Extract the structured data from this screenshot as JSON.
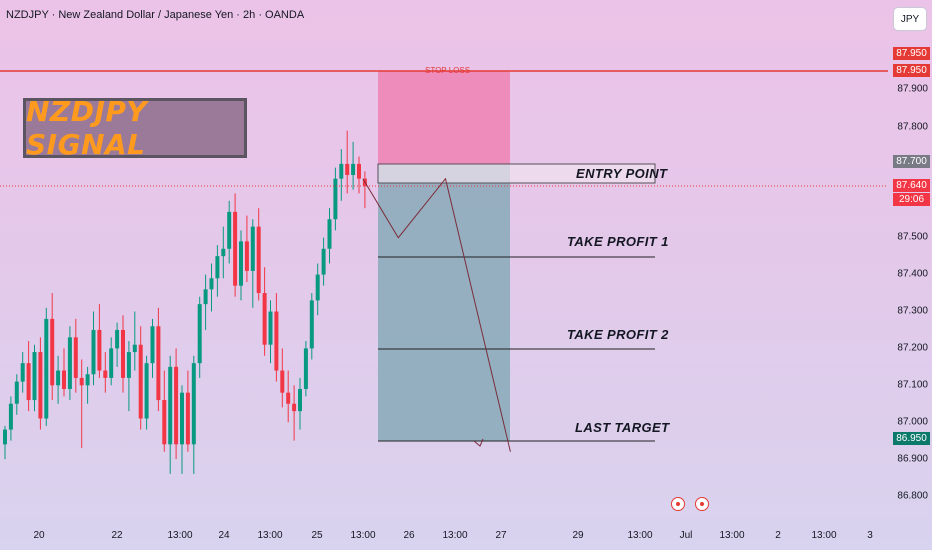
{
  "header": {
    "title": "NZDJPY · New Zealand Dollar / Japanese Yen · 2h · OANDA"
  },
  "currency_button": "JPY",
  "signal_title": "NZDJPY SIGNAL",
  "levels": {
    "stop_loss": "STOP LOSS",
    "entry": "ENTRY POINT",
    "tp1": "TAKE PROFIT 1",
    "tp2": "TAKE PROFIT 2",
    "last": "LAST TARGET"
  },
  "price_axis": {
    "ticks": [
      "87.900",
      "87.800",
      "87.500",
      "87.400",
      "87.300",
      "87.200",
      "87.100",
      "87.000",
      "86.900",
      "86.800"
    ],
    "badges": {
      "stop_loss_1": "87.950",
      "stop_loss_2": "87.950",
      "entry": "87.700",
      "current": "87.640",
      "countdown": "29:06",
      "target": "86.950"
    }
  },
  "time_axis": {
    "labels": [
      "20",
      "22",
      "13:00",
      "24",
      "13:00",
      "25",
      "13:00",
      "26",
      "13:00",
      "27",
      "29",
      "13:00",
      "Jul",
      "13:00",
      "2",
      "13:00",
      "3"
    ]
  },
  "colors": {
    "bull": "#089981",
    "bear": "#f23645",
    "stop_line": "#e53935",
    "stop_zone": "#ee83b4",
    "target_zone": "#7fa7b4"
  },
  "candles": [
    [
      86.94,
      86.99,
      86.9,
      86.98
    ],
    [
      86.98,
      87.07,
      86.95,
      87.05
    ],
    [
      87.05,
      87.13,
      87.02,
      87.11
    ],
    [
      87.11,
      87.19,
      87.08,
      87.16
    ],
    [
      87.16,
      87.22,
      87.03,
      87.06
    ],
    [
      87.06,
      87.21,
      87.03,
      87.19
    ],
    [
      87.19,
      87.23,
      86.98,
      87.01
    ],
    [
      87.01,
      87.31,
      86.99,
      87.28
    ],
    [
      87.28,
      87.35,
      87.06,
      87.1
    ],
    [
      87.1,
      87.18,
      87.05,
      87.14
    ],
    [
      87.14,
      87.2,
      87.07,
      87.09
    ],
    [
      87.09,
      87.26,
      87.06,
      87.23
    ],
    [
      87.23,
      87.28,
      87.08,
      87.12
    ],
    [
      87.12,
      87.17,
      86.93,
      87.1
    ],
    [
      87.1,
      87.15,
      87.05,
      87.13
    ],
    [
      87.13,
      87.3,
      87.1,
      87.25
    ],
    [
      87.25,
      87.32,
      87.12,
      87.14
    ],
    [
      87.14,
      87.19,
      87.08,
      87.12
    ],
    [
      87.12,
      87.23,
      87.1,
      87.2
    ],
    [
      87.2,
      87.27,
      87.15,
      87.25
    ],
    [
      87.25,
      87.29,
      87.08,
      87.12
    ],
    [
      87.12,
      87.22,
      87.03,
      87.19
    ],
    [
      87.19,
      87.3,
      87.14,
      87.21
    ],
    [
      87.21,
      87.26,
      86.98,
      87.01
    ],
    [
      87.01,
      87.18,
      86.98,
      87.16
    ],
    [
      87.16,
      87.28,
      87.12,
      87.26
    ],
    [
      87.26,
      87.31,
      87.03,
      87.06
    ],
    [
      87.06,
      87.14,
      86.92,
      86.94
    ],
    [
      86.94,
      87.18,
      86.86,
      87.15
    ],
    [
      87.15,
      87.2,
      86.9,
      86.94
    ],
    [
      86.94,
      87.1,
      86.86,
      87.08
    ],
    [
      87.08,
      87.14,
      86.92,
      86.94
    ],
    [
      86.94,
      87.18,
      86.86,
      87.16
    ],
    [
      87.16,
      87.34,
      87.12,
      87.32
    ],
    [
      87.32,
      87.4,
      87.25,
      87.36
    ],
    [
      87.36,
      87.43,
      87.3,
      87.39
    ],
    [
      87.39,
      87.48,
      87.34,
      87.45
    ],
    [
      87.45,
      87.53,
      87.39,
      87.47
    ],
    [
      87.47,
      87.6,
      87.43,
      87.57
    ],
    [
      87.57,
      87.62,
      87.34,
      87.37
    ],
    [
      87.37,
      87.52,
      87.33,
      87.49
    ],
    [
      87.49,
      87.56,
      87.38,
      87.41
    ],
    [
      87.41,
      87.55,
      87.31,
      87.53
    ],
    [
      87.53,
      87.58,
      87.33,
      87.35
    ],
    [
      87.35,
      87.42,
      87.18,
      87.21
    ],
    [
      87.21,
      87.33,
      87.16,
      87.3
    ],
    [
      87.3,
      87.35,
      87.11,
      87.14
    ],
    [
      87.14,
      87.2,
      87.04,
      87.08
    ],
    [
      87.08,
      87.14,
      87.0,
      87.05
    ],
    [
      87.05,
      87.1,
      86.95,
      87.03
    ],
    [
      87.03,
      87.12,
      86.98,
      87.09
    ],
    [
      87.09,
      87.22,
      87.07,
      87.2
    ],
    [
      87.2,
      87.35,
      87.17,
      87.33
    ],
    [
      87.33,
      87.43,
      87.29,
      87.4
    ],
    [
      87.4,
      87.5,
      87.37,
      87.47
    ],
    [
      87.47,
      87.58,
      87.43,
      87.55
    ],
    [
      87.55,
      87.69,
      87.52,
      87.66
    ],
    [
      87.66,
      87.74,
      87.6,
      87.7
    ],
    [
      87.7,
      87.79,
      87.62,
      87.67
    ],
    [
      87.67,
      87.76,
      87.63,
      87.7
    ],
    [
      87.7,
      87.72,
      87.62,
      87.66
    ],
    [
      87.66,
      87.68,
      87.58,
      87.64
    ]
  ],
  "forecast_path": [
    [
      0,
      87.66
    ],
    [
      6,
      87.5
    ],
    [
      14,
      87.66
    ],
    [
      25,
      86.92
    ]
  ]
}
